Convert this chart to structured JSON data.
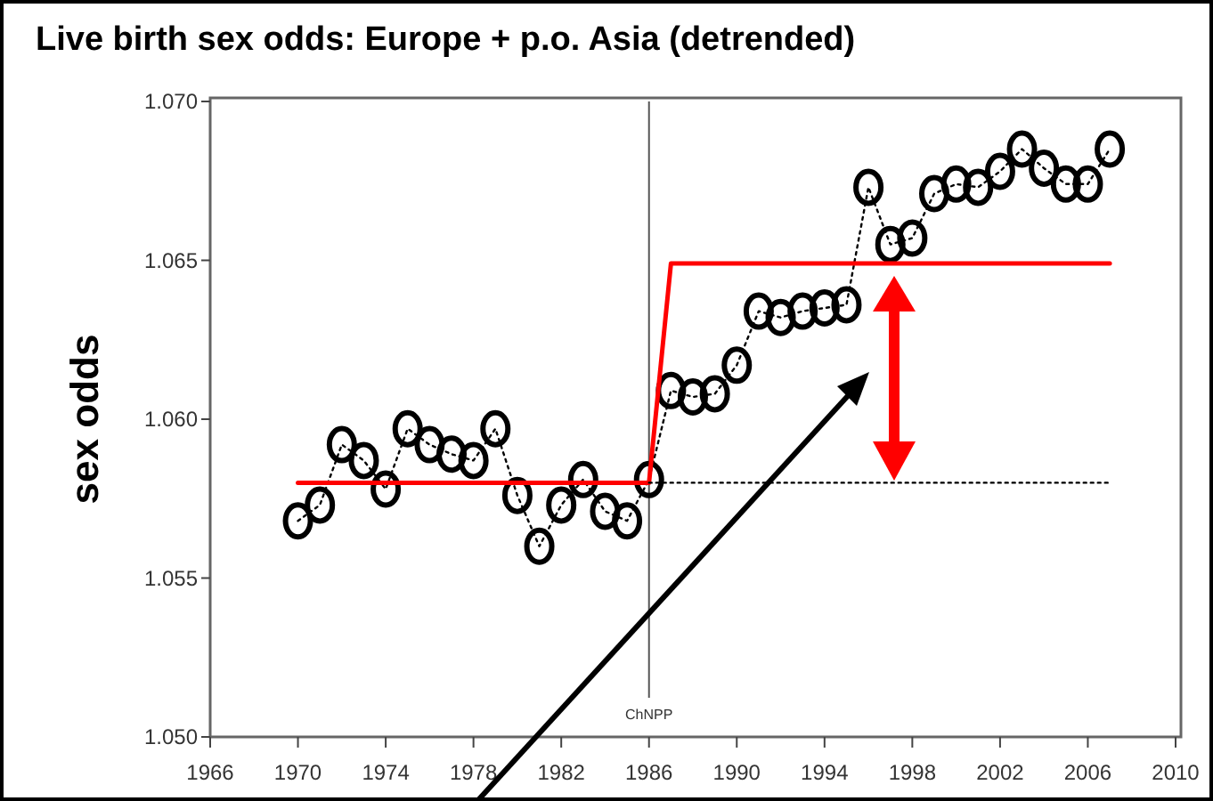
{
  "chart_data": {
    "type": "line",
    "title": "Live birth sex odds: Europe + p.o. Asia (detrended)",
    "ylabel": "sex odds",
    "xlim": [
      1966,
      2010
    ],
    "xticks": [
      1966,
      1970,
      1974,
      1978,
      1982,
      1986,
      1990,
      1994,
      1998,
      2002,
      2006,
      2010
    ],
    "ylim": [
      1.05,
      1.07
    ],
    "yticks": [
      {
        "value": 1.05,
        "label": "1.050"
      },
      {
        "value": 1.055,
        "label": "1.055"
      },
      {
        "value": 1.06,
        "label": "1.060"
      },
      {
        "value": 1.065,
        "label": "1.065"
      },
      {
        "value": 1.07,
        "label": "1.070"
      }
    ],
    "grid": false,
    "series": [
      {
        "color": "#000000",
        "marker": "circle",
        "line_style": "dotted",
        "x": [
          1970,
          1971,
          1972,
          1973,
          1974,
          1975,
          1976,
          1977,
          1978,
          1979,
          1980,
          1981,
          1982,
          1983,
          1984,
          1985,
          1986,
          1987,
          1988,
          1989,
          1990,
          1991,
          1992,
          1993,
          1994,
          1995,
          1996,
          1997,
          1998,
          1999,
          2000,
          2001,
          2002,
          2003,
          2004,
          2005,
          2006,
          2007
        ],
        "values": [
          1.0568,
          1.0573,
          1.0592,
          1.0587,
          1.0578,
          1.0597,
          1.0592,
          1.0589,
          1.0587,
          1.0597,
          1.0576,
          1.056,
          1.0573,
          1.0581,
          1.0571,
          1.0568,
          1.0581,
          1.0609,
          1.0607,
          1.0608,
          1.0617,
          1.0634,
          1.0632,
          1.0634,
          1.0635,
          1.0636,
          1.0673,
          1.0655,
          1.0657,
          1.0671,
          1.0674,
          1.0673,
          1.0678,
          1.0685,
          1.0679,
          1.0674,
          1.0674,
          1.0685
        ]
      },
      {
        "color": "#ff0000",
        "marker": "none",
        "line_style": "solid",
        "x": [
          1970,
          1986,
          1987,
          2007
        ],
        "values": [
          1.058,
          1.058,
          1.0649,
          1.0649
        ]
      },
      {
        "color": "#000000",
        "marker": "none",
        "line_style": "dotted",
        "x": [
          1986,
          2007
        ],
        "values": [
          1.058,
          1.058
        ]
      }
    ],
    "ref_lines": [
      {
        "axis": "x",
        "value": 1986,
        "label": "ChNPP",
        "color": "#555555"
      }
    ]
  }
}
